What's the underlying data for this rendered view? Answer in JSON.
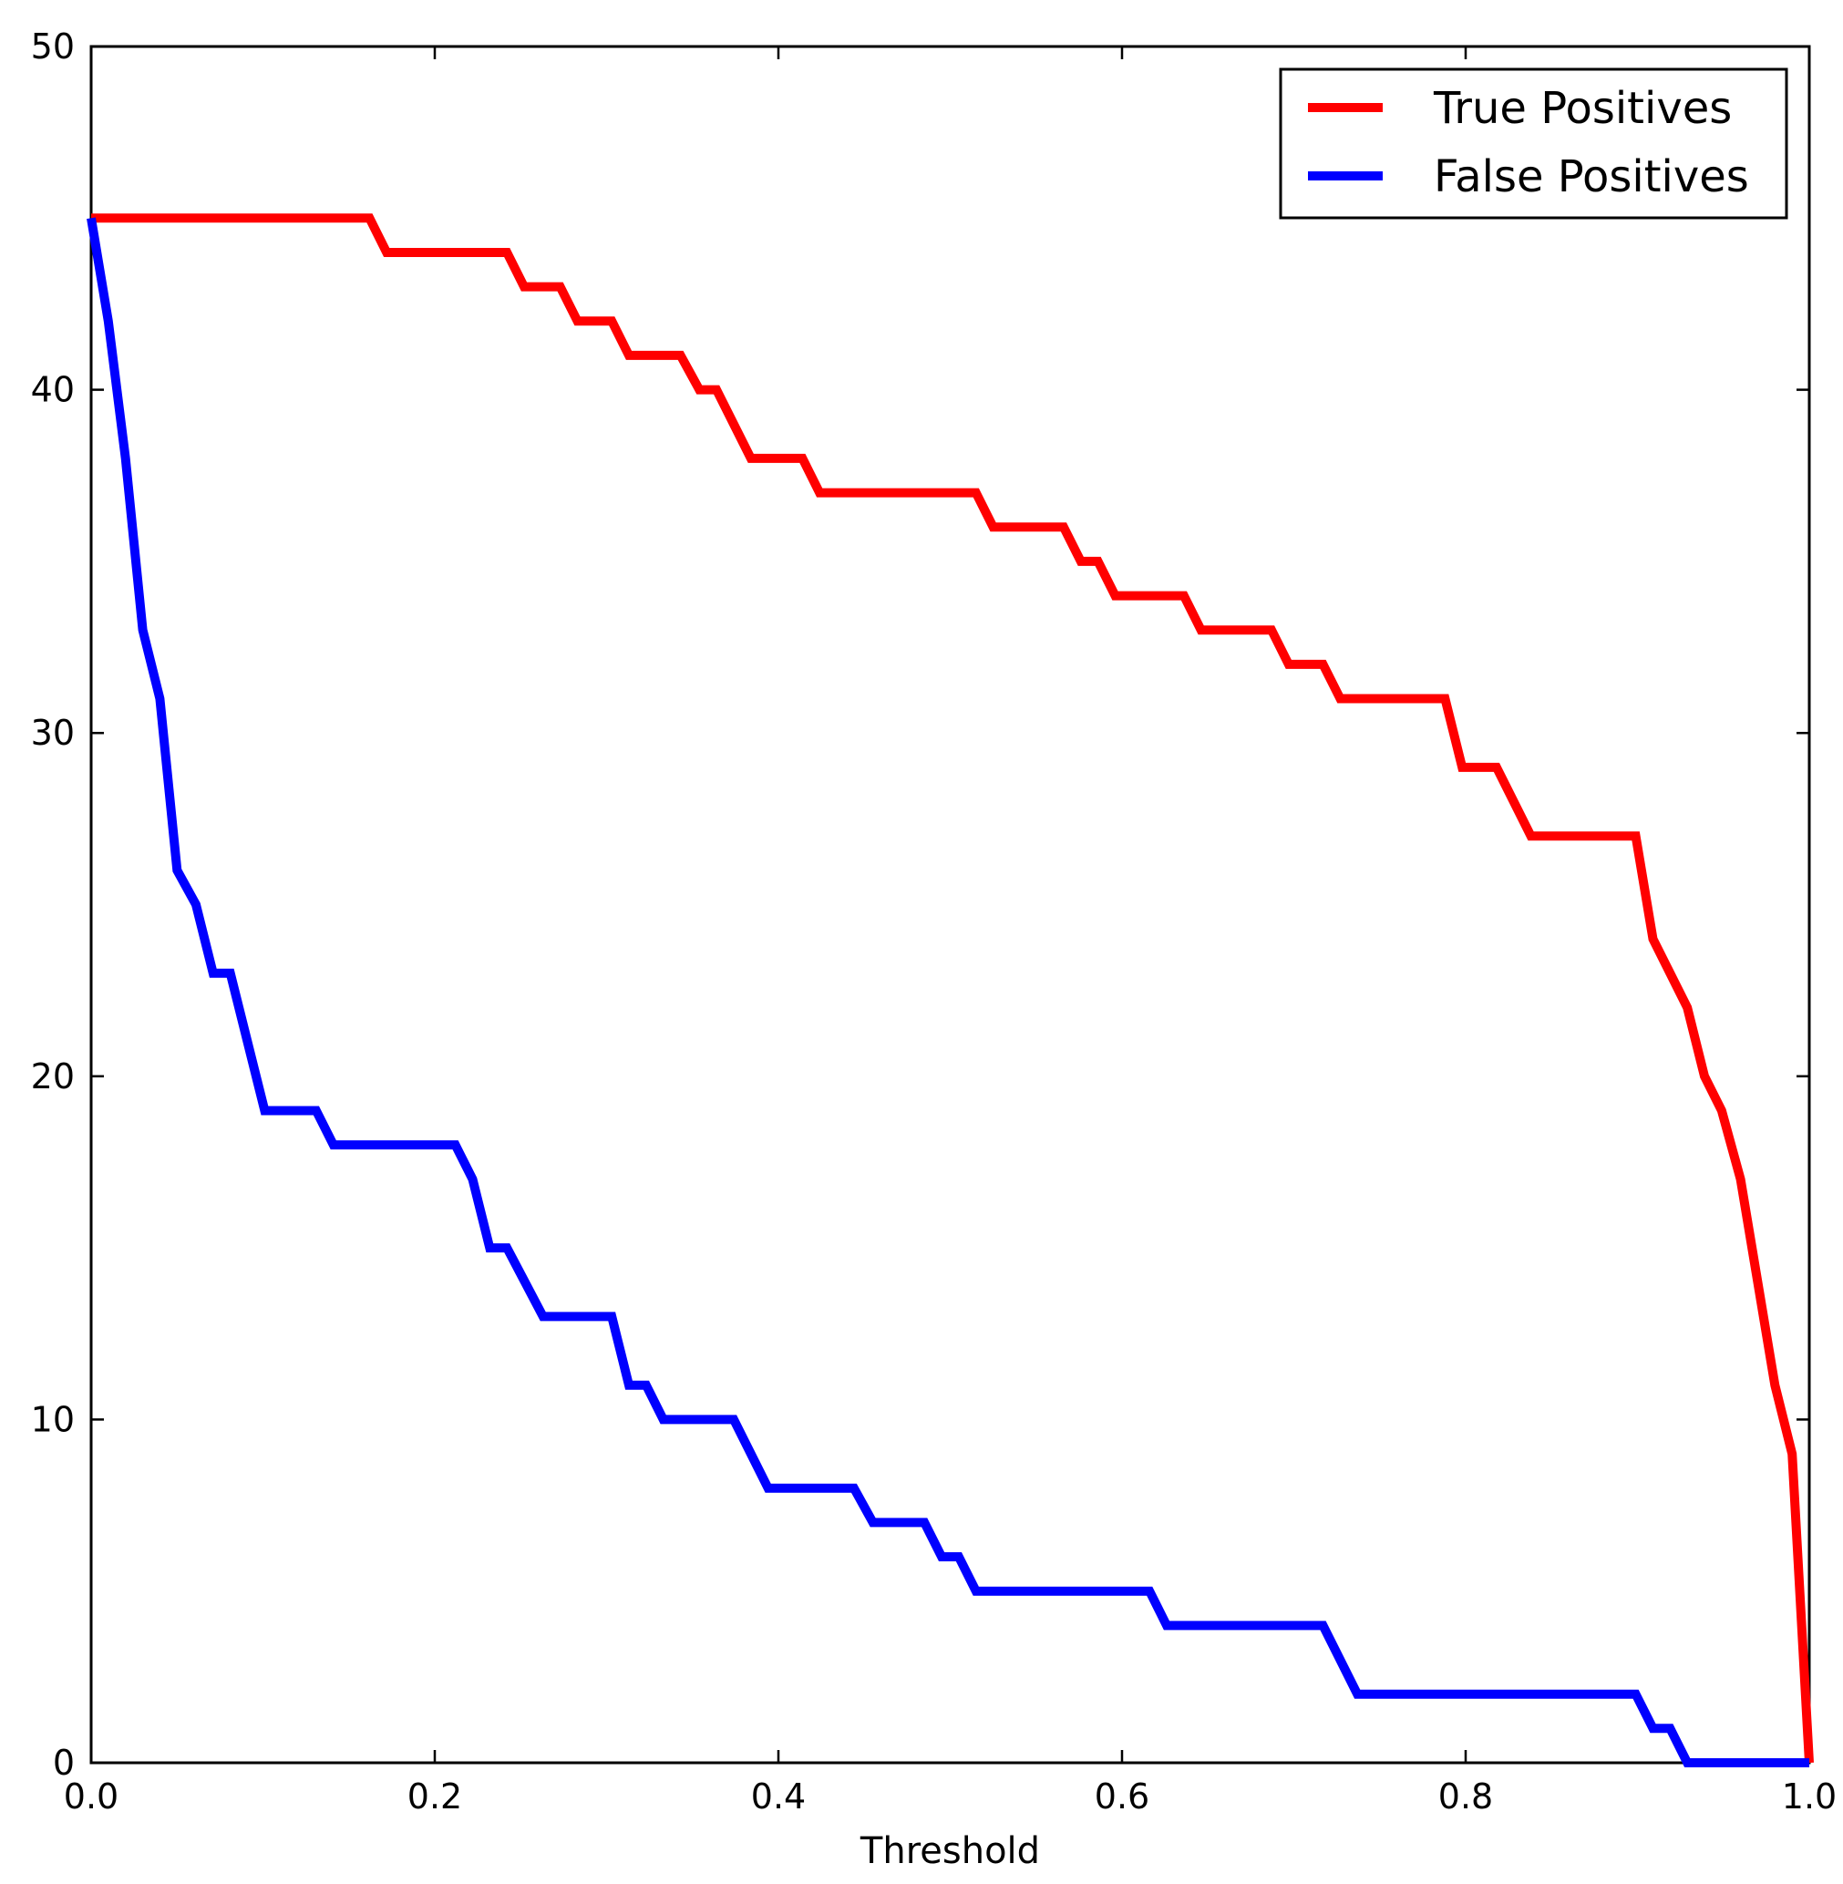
{
  "chart_data": {
    "type": "line",
    "title": "",
    "xlabel": "Threshold",
    "ylabel": "",
    "xlim": [
      0.0,
      1.0
    ],
    "ylim": [
      0,
      50
    ],
    "x_ticks": [
      "0.0",
      "0.2",
      "0.4",
      "0.6",
      "0.8",
      "1.0"
    ],
    "y_ticks": [
      "0",
      "10",
      "20",
      "30",
      "40",
      "50"
    ],
    "grid": false,
    "legend_position": "top-right",
    "series": [
      {
        "name": "True Positives",
        "color": "#ff0000",
        "points": [
          [
            0.0,
            45
          ],
          [
            0.162,
            45
          ],
          [
            0.172,
            44
          ],
          [
            0.242,
            44
          ],
          [
            0.252,
            43
          ],
          [
            0.273,
            43
          ],
          [
            0.283,
            42
          ],
          [
            0.303,
            42
          ],
          [
            0.313,
            41
          ],
          [
            0.343,
            41
          ],
          [
            0.354,
            40
          ],
          [
            0.364,
            40
          ],
          [
            0.384,
            38
          ],
          [
            0.414,
            38
          ],
          [
            0.424,
            37
          ],
          [
            0.515,
            37
          ],
          [
            0.525,
            36
          ],
          [
            0.566,
            36
          ],
          [
            0.576,
            35
          ],
          [
            0.586,
            35
          ],
          [
            0.596,
            34
          ],
          [
            0.636,
            34
          ],
          [
            0.646,
            33
          ],
          [
            0.687,
            33
          ],
          [
            0.697,
            32
          ],
          [
            0.717,
            32
          ],
          [
            0.727,
            31
          ],
          [
            0.788,
            31
          ],
          [
            0.798,
            29
          ],
          [
            0.818,
            29
          ],
          [
            0.838,
            27
          ],
          [
            0.899,
            27
          ],
          [
            0.909,
            24
          ],
          [
            0.929,
            22
          ],
          [
            0.939,
            20
          ],
          [
            0.949,
            19
          ],
          [
            0.96,
            17
          ],
          [
            0.98,
            11
          ],
          [
            0.99,
            9
          ],
          [
            1.0,
            0
          ]
        ]
      },
      {
        "name": "False Positives",
        "color": "#0000ff",
        "points": [
          [
            0.0,
            45
          ],
          [
            0.01,
            42
          ],
          [
            0.02,
            38
          ],
          [
            0.03,
            33
          ],
          [
            0.04,
            31
          ],
          [
            0.05,
            26
          ],
          [
            0.061,
            25
          ],
          [
            0.071,
            23
          ],
          [
            0.081,
            23
          ],
          [
            0.101,
            19
          ],
          [
            0.131,
            19
          ],
          [
            0.141,
            18
          ],
          [
            0.212,
            18
          ],
          [
            0.222,
            17
          ],
          [
            0.232,
            15
          ],
          [
            0.242,
            15
          ],
          [
            0.263,
            13
          ],
          [
            0.303,
            13
          ],
          [
            0.313,
            11
          ],
          [
            0.323,
            11
          ],
          [
            0.333,
            10
          ],
          [
            0.374,
            10
          ],
          [
            0.394,
            8
          ],
          [
            0.444,
            8
          ],
          [
            0.455,
            7
          ],
          [
            0.485,
            7
          ],
          [
            0.495,
            6
          ],
          [
            0.505,
            6
          ],
          [
            0.515,
            5
          ],
          [
            0.616,
            5
          ],
          [
            0.626,
            4
          ],
          [
            0.717,
            4
          ],
          [
            0.737,
            2
          ],
          [
            0.899,
            2
          ],
          [
            0.909,
            1
          ],
          [
            0.919,
            1
          ],
          [
            0.929,
            0
          ],
          [
            1.0,
            0
          ]
        ]
      }
    ]
  }
}
